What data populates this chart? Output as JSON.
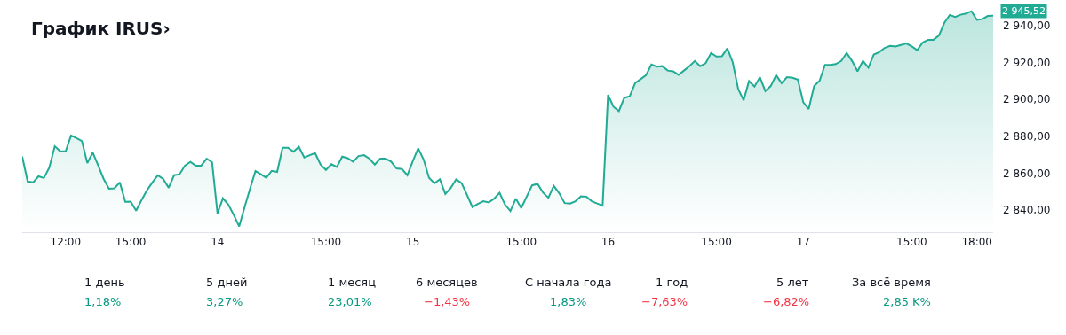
{
  "chart_data": [
    {
      "type": "area",
      "title": "График IRUS›",
      "categories": [
        null,
        null,
        null,
        null,
        null,
        null,
        null,
        null,
        "12:00",
        null,
        null,
        null,
        null,
        null,
        null,
        null,
        null,
        null,
        null,
        null,
        "15:00",
        null,
        null,
        null,
        null,
        null,
        null,
        null,
        null,
        null,
        null,
        null,
        null,
        null,
        null,
        null,
        "14",
        null,
        null,
        null,
        null,
        null,
        null,
        null,
        null,
        null,
        null,
        null,
        null,
        null,
        null,
        null,
        null,
        null,
        null,
        null,
        "15:00",
        null,
        null,
        null,
        null,
        null,
        null,
        null,
        null,
        null,
        null,
        null,
        null,
        null,
        null,
        null,
        "15",
        null,
        null,
        null,
        null,
        null,
        null,
        null,
        null,
        null,
        null,
        null,
        null,
        null,
        null,
        null,
        null,
        null,
        null,
        null,
        "15:00",
        null,
        null,
        null,
        null,
        null,
        null,
        null,
        null,
        null,
        null,
        null,
        null,
        null,
        null,
        null,
        "16",
        null,
        null,
        null,
        null,
        null,
        null,
        null,
        null,
        null,
        null,
        null,
        null,
        null,
        null,
        null,
        null,
        null,
        null,
        null,
        "15:00",
        null,
        null,
        null,
        null,
        null,
        null,
        null,
        null,
        null,
        null,
        null,
        null,
        null,
        null,
        null,
        "17",
        null,
        null,
        null,
        null,
        null,
        null,
        null,
        null,
        null,
        null,
        null,
        null,
        null,
        null,
        null,
        null,
        null,
        null,
        null,
        "15:00",
        null,
        null,
        null,
        null,
        null,
        null,
        null,
        null,
        null,
        null,
        null,
        "18:00",
        null,
        null,
        null
      ],
      "series": [
        {
          "color": "#22ab94",
          "values": [
            2869,
            2855.5,
            2855,
            2858.3,
            2857.4,
            2863.1,
            2874.6,
            2871.9,
            2871.9,
            2880.5,
            2879,
            2877.5,
            2865.5,
            2871.2,
            2864.2,
            2857,
            2851.6,
            2851.8,
            2855,
            2844.5,
            2844.6,
            2839.7,
            2845.4,
            2850.7,
            2855,
            2858.8,
            2856.9,
            2852.1,
            2858.9,
            2859.4,
            2864.1,
            2866.1,
            2864.1,
            2864.1,
            2867.9,
            2866,
            2838.2,
            2846.4,
            2843,
            2837.3,
            2831.1,
            2841.6,
            2851.6,
            2861.2,
            2859.4,
            2857.5,
            2861.3,
            2860.7,
            2873.8,
            2873.8,
            2871.7,
            2874.3,
            2868.5,
            2869.8,
            2870.9,
            2864.7,
            2861.8,
            2864.9,
            2863.4,
            2869,
            2868.2,
            2866.3,
            2869.3,
            2869.8,
            2867.9,
            2864.7,
            2867.9,
            2867.9,
            2866.3,
            2862.6,
            2862.3,
            2858.9,
            2866.5,
            2873.5,
            2867.4,
            2857.5,
            2854.6,
            2856.7,
            2848.8,
            2852,
            2856.6,
            2854.6,
            2848.3,
            2841.6,
            2843.3,
            2844.8,
            2844.1,
            2846.2,
            2849.4,
            2843,
            2839.5,
            2846.2,
            2841.1,
            2847.3,
            2853.4,
            2854.2,
            2849.6,
            2846.7,
            2853.1,
            2849.1,
            2843.8,
            2843.5,
            2844.8,
            2847.5,
            2847.3,
            2844.8,
            2843.6,
            2842.4,
            2902.5,
            2896.1,
            2893.7,
            2900.9,
            2901.7,
            2908.9,
            2911,
            2913.2,
            2919,
            2917.8,
            2918.1,
            2915.7,
            2915.3,
            2913.4,
            2915.7,
            2918.1,
            2920.9,
            2918.1,
            2919.7,
            2925.2,
            2923.3,
            2923.5,
            2927.7,
            2920.1,
            2905.7,
            2899.6,
            2910,
            2907,
            2912.1,
            2904.6,
            2907.3,
            2913.2,
            2908.9,
            2912.1,
            2911.8,
            2910.8,
            2898.5,
            2894.8,
            2907.3,
            2910.1,
            2918.8,
            2918.8,
            2919.2,
            2920.9,
            2925.3,
            2920.9,
            2915.3,
            2920.9,
            2917.3,
            2924.4,
            2925.7,
            2928,
            2929.1,
            2928.8,
            2929.6,
            2930.4,
            2928.8,
            2926.8,
            2930.9,
            2932.4,
            2932.4,
            2934.7,
            2941.6,
            2945.9,
            2944.8,
            2946,
            2946.7,
            2947.9,
            2943.2,
            2943.6,
            2945.3,
            2945.5
          ]
        }
      ],
      "ylim": [
        2828,
        2954
      ],
      "yticks": [
        {
          "value": 2840,
          "label": "2 840,00"
        },
        {
          "value": 2860,
          "label": "2 860,00"
        },
        {
          "value": 2880,
          "label": "2 880,00"
        },
        {
          "value": 2900,
          "label": "2 900,00"
        },
        {
          "value": 2920,
          "label": "2 920,00"
        },
        {
          "value": 2940,
          "label": "2 940,00"
        }
      ],
      "annotations": [
        "2 945,52"
      ],
      "marker": "none",
      "line_style": "solid"
    },
    {
      "type": "other",
      "annotations": [
        "1 день",
        "1,18%",
        "5 дней",
        "3,27%",
        "1 месяц",
        "23,01%",
        "6 месяцев",
        "−1,43%",
        "С начала года",
        "1,83%",
        "1 год",
        "−7,63%",
        "5 лет",
        "−6,82%",
        "За всё время",
        "2,85 K%"
      ],
      "colors": [
        "#089981",
        "#089981",
        "#089981",
        "#f23645",
        "#089981",
        "#f23645",
        "#f23645",
        "#089981"
      ]
    }
  ]
}
